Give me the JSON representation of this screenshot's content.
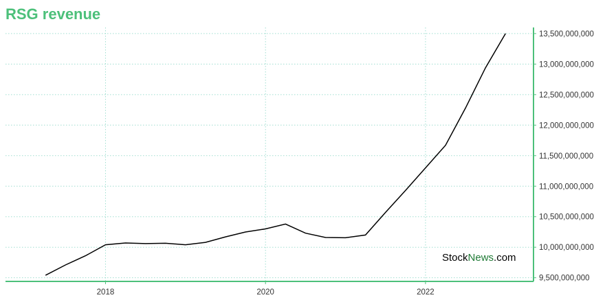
{
  "title": "RSG revenue",
  "watermark": {
    "part1": "Stock",
    "part2": "News",
    "part3": ".com"
  },
  "colors": {
    "title": "#4cc07a",
    "axis": "#4cc07a",
    "grid": "#9fded0",
    "line": "#000000",
    "watermark_news": "#1f7a35"
  },
  "chart_data": {
    "type": "line",
    "title": "RSG revenue",
    "xlabel": "",
    "ylabel": "",
    "x_ticks": [
      "2018",
      "2020",
      "2022"
    ],
    "y_ticks": [
      "9,500,000,000",
      "10,000,000,000",
      "10,500,000,000",
      "11,000,000,000",
      "11,500,000,000",
      "12,000,000,000",
      "12,500,000,000",
      "13,000,000,000",
      "13,500,000,000"
    ],
    "xlim": [
      2016.75,
      2023.35
    ],
    "ylim": [
      9440000000,
      13600000000
    ],
    "grid": true,
    "y_axis_position": "right",
    "series": [
      {
        "x": [
          2017.25,
          2017.5,
          2017.75,
          2018.0,
          2018.25,
          2018.5,
          2018.75,
          2019.0,
          2019.25,
          2019.5,
          2019.75,
          2020.0,
          2020.25,
          2020.5,
          2020.75,
          2021.0,
          2021.25,
          2021.5,
          2021.75,
          2022.0,
          2022.25,
          2022.5,
          2022.75,
          2023.0
        ],
        "y": [
          9540000000,
          9710000000,
          9860000000,
          10040000000,
          10070000000,
          10060000000,
          10065000000,
          10040000000,
          10080000000,
          10170000000,
          10250000000,
          10300000000,
          10380000000,
          10230000000,
          10160000000,
          10155000000,
          10200000000,
          10570000000,
          10930000000,
          11300000000,
          11670000000,
          12280000000,
          12940000000,
          13500000000
        ]
      }
    ]
  }
}
